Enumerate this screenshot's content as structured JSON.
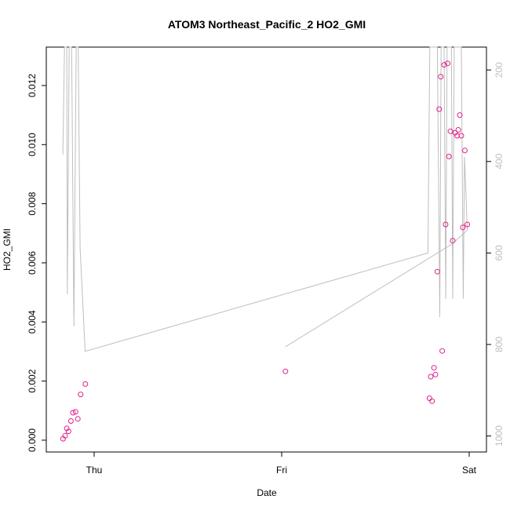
{
  "chart_data": {
    "type": "scatter",
    "title": "ATOM3 Northeast_Pacific_2 HO2_GMI",
    "xlabel": "Date",
    "ylabel": "HO2_GMI",
    "x_ticks": [
      {
        "label": "Thu",
        "day": 0
      },
      {
        "label": "Fri",
        "day": 1
      },
      {
        "label": "Sat",
        "day": 2
      }
    ],
    "y_ticks": [
      "0.000",
      "0.002",
      "0.004",
      "0.006",
      "0.008",
      "0.010",
      "0.012"
    ],
    "y_tick_values": [
      0,
      0.002,
      0.004,
      0.006,
      0.008,
      0.01,
      0.012
    ],
    "ylim": [
      -0.0004,
      0.0133
    ],
    "right_axis": {
      "ticks": [
        "200",
        "400",
        "600",
        "800",
        "1000"
      ],
      "tick_values": [
        200,
        400,
        600,
        800,
        1000
      ],
      "ylim": [
        1035,
        150
      ],
      "color": "#bebebe"
    },
    "colors": {
      "points": "#e0218a",
      "line": "#bebebe",
      "axis": "#000000"
    },
    "series": [
      {
        "marker": "circle",
        "color": "#e0218a",
        "points": [
          {
            "day": -0.166,
            "y": 5e-05
          },
          {
            "day": -0.155,
            "y": 0.00015
          },
          {
            "day": -0.146,
            "y": 0.0004
          },
          {
            "day": -0.137,
            "y": 0.0003
          },
          {
            "day": -0.124,
            "y": 0.00065
          },
          {
            "day": -0.113,
            "y": 0.00093
          },
          {
            "day": -0.099,
            "y": 0.00096
          },
          {
            "day": -0.087,
            "y": 0.00072
          },
          {
            "day": -0.072,
            "y": 0.00155
          },
          {
            "day": -0.047,
            "y": 0.0019
          },
          {
            "day": 1.02,
            "y": 0.00233
          },
          {
            "day": 1.788,
            "y": 0.00142
          },
          {
            "day": 1.795,
            "y": 0.00215
          },
          {
            "day": 1.802,
            "y": 0.00132
          },
          {
            "day": 1.812,
            "y": 0.00245
          },
          {
            "day": 1.82,
            "y": 0.00222
          },
          {
            "day": 1.83,
            "y": 0.0057
          },
          {
            "day": 1.84,
            "y": 0.0112
          },
          {
            "day": 1.848,
            "y": 0.0123
          },
          {
            "day": 1.856,
            "y": 0.00302
          },
          {
            "day": 1.866,
            "y": 0.0127
          },
          {
            "day": 1.874,
            "y": 0.0073
          },
          {
            "day": 1.885,
            "y": 0.01275
          },
          {
            "day": 1.892,
            "y": 0.0096
          },
          {
            "day": 1.9,
            "y": 0.01045
          },
          {
            "day": 1.912,
            "y": 0.00675
          },
          {
            "day": 1.925,
            "y": 0.0104
          },
          {
            "day": 1.935,
            "y": 0.0103
          },
          {
            "day": 1.942,
            "y": 0.0105
          },
          {
            "day": 1.95,
            "y": 0.011
          },
          {
            "day": 1.958,
            "y": 0.0103
          },
          {
            "day": 1.966,
            "y": 0.0072
          },
          {
            "day": 1.977,
            "y": 0.0098
          },
          {
            "day": 1.99,
            "y": 0.0073
          }
        ]
      },
      {
        "name_hidden": true,
        "axis": "right",
        "color": "#bebebe",
        "points": [
          {
            "day": -0.167,
            "p": 385
          },
          {
            "day": -0.158,
            "p": 150
          },
          {
            "day": -0.146,
            "p": 150
          },
          {
            "day": -0.143,
            "p": 690
          },
          {
            "day": -0.133,
            "p": 150
          },
          {
            "day": -0.12,
            "p": 150
          },
          {
            "day": -0.108,
            "p": 760
          },
          {
            "day": -0.096,
            "p": 150
          },
          {
            "day": -0.085,
            "p": 150
          },
          {
            "day": -0.075,
            "p": 590
          },
          {
            "day": -0.048,
            "p": 815
          },
          {
            "day": 1.78,
            "p": 600
          },
          {
            "day": 1.79,
            "p": 150
          },
          {
            "day": 1.8,
            "p": 150
          },
          {
            "day": 1.81,
            "p": 150
          },
          {
            "day": 1.815,
            "p": 150
          },
          {
            "day": 1.822,
            "p": 150
          },
          {
            "day": 1.83,
            "p": 150
          },
          {
            "day": 1.843,
            "p": 740
          },
          {
            "day": 1.85,
            "p": 150
          },
          {
            "day": 1.857,
            "p": 150
          },
          {
            "day": 1.866,
            "p": 150
          },
          {
            "day": 1.875,
            "p": 700
          },
          {
            "day": 1.882,
            "p": 150
          },
          {
            "day": 1.89,
            "p": 150
          },
          {
            "day": 1.897,
            "p": 150
          },
          {
            "day": 1.905,
            "p": 150
          },
          {
            "day": 1.912,
            "p": 700
          },
          {
            "day": 1.92,
            "p": 150
          },
          {
            "day": 1.93,
            "p": 150
          },
          {
            "day": 1.938,
            "p": 150
          },
          {
            "day": 1.948,
            "p": 150
          },
          {
            "day": 1.958,
            "p": 150
          },
          {
            "day": 1.968,
            "p": 700
          },
          {
            "day": 1.975,
            "p": 390
          },
          {
            "day": 1.99,
            "p": 550
          },
          {
            "day": 1.91,
            "p": 580
          },
          {
            "day": 1.02,
            "p": 805
          }
        ]
      }
    ]
  }
}
